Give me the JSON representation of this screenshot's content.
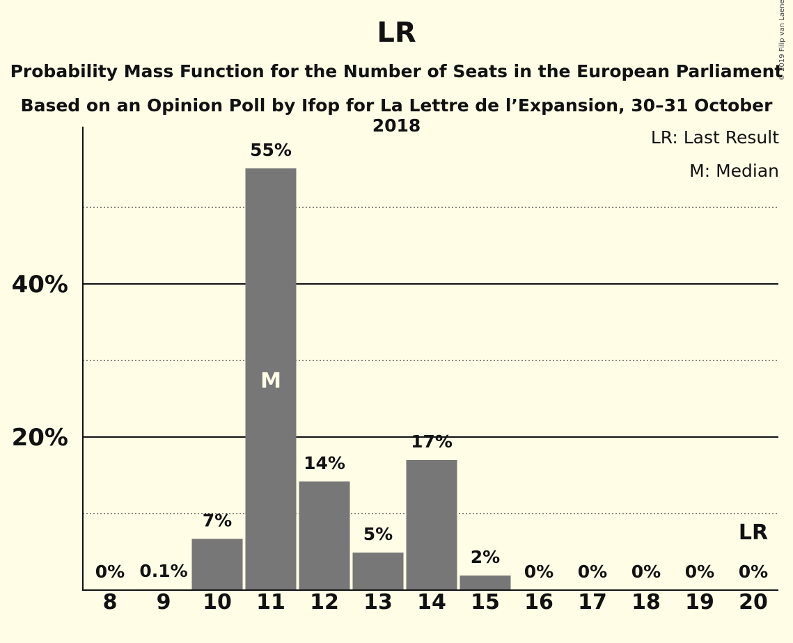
{
  "title": "LR",
  "subtitle_1": "Probability Mass Function for the Number of Seats in the European Parliament",
  "subtitle_2": "Based on an Opinion Poll by Ifop for La Lettre de l’Expansion, 30–31 October 2018",
  "copyright": "© 2019 Filip van Laenen",
  "legend": {
    "last_result": "LR: Last Result",
    "median": "M: Median"
  },
  "colors": {
    "background": "#fffde6",
    "bar": "#777777",
    "text": "#111111"
  },
  "chart_data": {
    "type": "bar",
    "categories": [
      "8",
      "9",
      "10",
      "11",
      "12",
      "13",
      "14",
      "15",
      "16",
      "17",
      "18",
      "19",
      "20"
    ],
    "values": [
      0,
      0.1,
      6.7,
      55.1,
      14.2,
      4.9,
      17.0,
      1.9,
      0,
      0,
      0,
      0,
      0
    ],
    "value_labels": [
      "0%",
      "0.1%",
      "7%",
      "55%",
      "14%",
      "5%",
      "17%",
      "2%",
      "0%",
      "0%",
      "0%",
      "0%",
      "0%"
    ],
    "ylim": [
      0,
      60
    ],
    "yticks": [
      {
        "value": 20,
        "label": "20%"
      },
      {
        "value": 40,
        "label": "40%"
      }
    ],
    "minor_gridlines": [
      10,
      30,
      50
    ],
    "major_gridlines": [
      20,
      40
    ],
    "median_category": "11",
    "median_marker": "M",
    "last_result_category": "20",
    "last_result_marker": "LR",
    "xlabel": "",
    "ylabel": ""
  }
}
